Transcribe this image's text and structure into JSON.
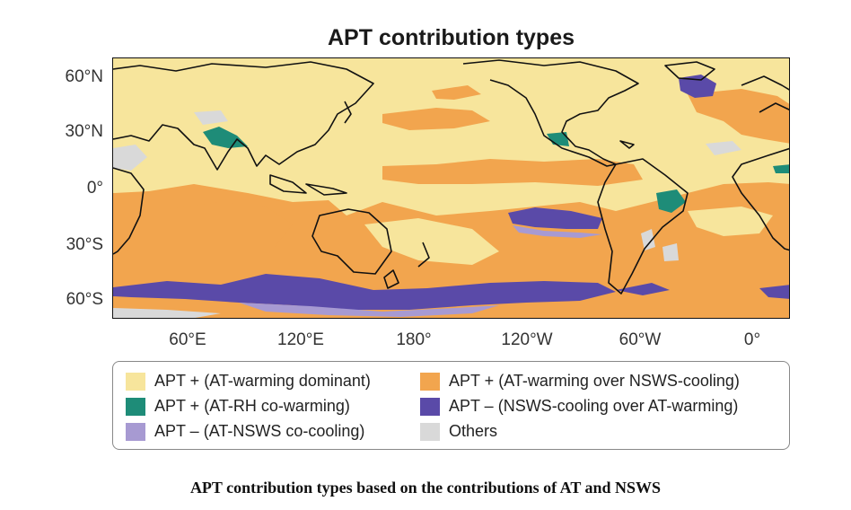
{
  "map": {
    "title": "APT contribution types",
    "lat_labels": [
      "60°N",
      "30°N",
      "0°",
      "30°S",
      "60°S"
    ],
    "lon_labels": [
      "60°E",
      "120°E",
      "180°",
      "120°W",
      "60°W",
      "0°"
    ],
    "colors": {
      "warming_dominant": "#f7e59c",
      "warming_over_cooling": "#f2a54e",
      "rh_cowarming": "#1e8c78",
      "nsws_over_warming": "#5a4aa8",
      "co_cooling": "#a79ad2",
      "others": "#d9d9d9",
      "coast": "#111111"
    }
  },
  "legend": {
    "items": [
      {
        "label": "APT + (AT-warming dominant)",
        "color": "#f7e59c"
      },
      {
        "label": "APT + (AT-warming over NSWS-cooling)",
        "color": "#f2a54e"
      },
      {
        "label": "APT + (AT-RH co-warming)",
        "color": "#1e8c78"
      },
      {
        "label": "APT – (NSWS-cooling over AT-warming)",
        "color": "#5a4aa8"
      },
      {
        "label": "APT – (AT-NSWS co-cooling)",
        "color": "#a79ad2"
      },
      {
        "label": "Others",
        "color": "#d9d9d9"
      }
    ]
  },
  "caption": "APT contribution types based on the contributions of AT and NSWS"
}
